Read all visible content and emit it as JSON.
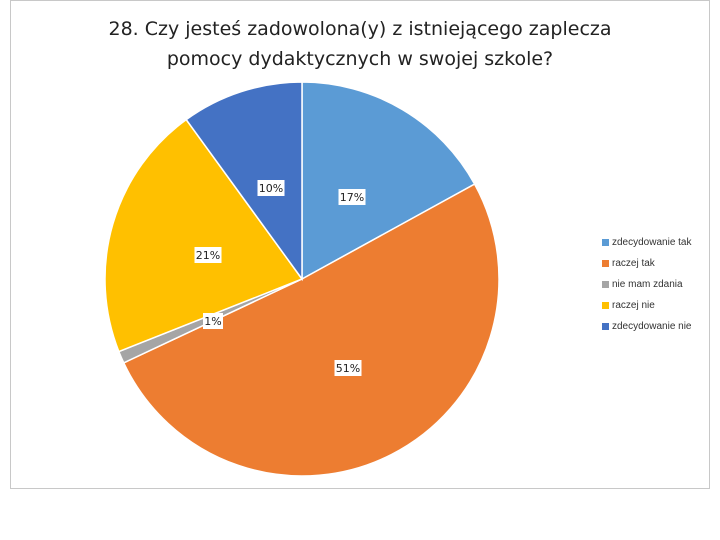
{
  "chart_data": {
    "type": "pie",
    "title": "28. Czy jesteś zadowolona(y) z istniejącego zaplecza pomocy dydaktycznych w swojej szkole?",
    "title_lines": [
      "28. Czy jesteś zadowolona(y) z istniejącego zaplecza",
      "pomocy dydaktycznych w swojej szkole?"
    ],
    "categories": [
      "zdecydowanie tak",
      "raczej tak",
      "nie mam zdania",
      "raczej nie",
      "zdecydowanie nie"
    ],
    "values": [
      17,
      51,
      1,
      21,
      10
    ],
    "labels": [
      "17%",
      "51%",
      "1%",
      "21%",
      "10%"
    ],
    "colors": [
      "#5b9bd5",
      "#ed7d31",
      "#a5a5a5",
      "#ffc000",
      "#4472c4"
    ],
    "legend_position": "right"
  }
}
